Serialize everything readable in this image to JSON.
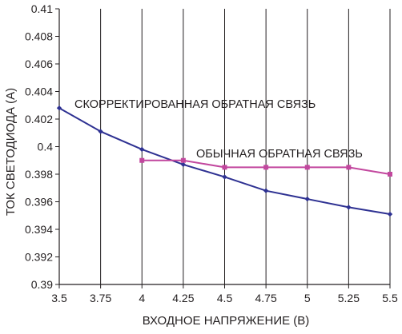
{
  "chart_data": {
    "type": "line",
    "title": "",
    "xlabel": "ВХОДНОЕ НАПРЯЖЕНИЕ (В)",
    "ylabel": "ТОК СВЕТОДИОДА (А)",
    "xlim": [
      3.5,
      5.5
    ],
    "ylim": [
      0.39,
      0.41
    ],
    "xticks": [
      3.5,
      3.75,
      4,
      4.25,
      4.5,
      4.75,
      5,
      5.25,
      5.5
    ],
    "xtick_labels": [
      "3.5",
      "3.75",
      "4",
      "4.25",
      "4.5",
      "4.75",
      "5",
      "5.25",
      "5.5"
    ],
    "yticks": [
      0.39,
      0.392,
      0.394,
      0.396,
      0.398,
      0.4,
      0.402,
      0.404,
      0.406,
      0.408,
      0.41
    ],
    "ytick_labels": [
      "0.39",
      "0.392",
      "0.394",
      "0.396",
      "0.398",
      "0.4",
      "0.402",
      "0.404",
      "0.406",
      "0.408",
      "0.41"
    ],
    "grid": {
      "vertical": true,
      "horizontal": false
    },
    "legend": "none",
    "series": [
      {
        "label": "СКОРРЕКТИРОВАННАЯ ОБРАТНАЯ СВЯЗЬ",
        "color": "#2e3192",
        "marker": "diamond",
        "x": [
          3.5,
          3.75,
          4,
          4.25,
          4.5,
          4.75,
          5,
          5.25,
          5.5
        ],
        "y": [
          0.4028,
          0.4011,
          0.3998,
          0.3987,
          0.3978,
          0.3968,
          0.3962,
          0.3956,
          0.3951
        ]
      },
      {
        "label": "ОБЫЧНАЯ ОБРАТНАЯ СВЯЗЬ",
        "color": "#c2479e",
        "marker": "square",
        "x": [
          4,
          4.25,
          4.5,
          4.75,
          5,
          5.25,
          5.5
        ],
        "y": [
          0.399,
          0.399,
          0.3985,
          0.3985,
          0.3985,
          0.3985,
          0.398
        ]
      }
    ]
  }
}
